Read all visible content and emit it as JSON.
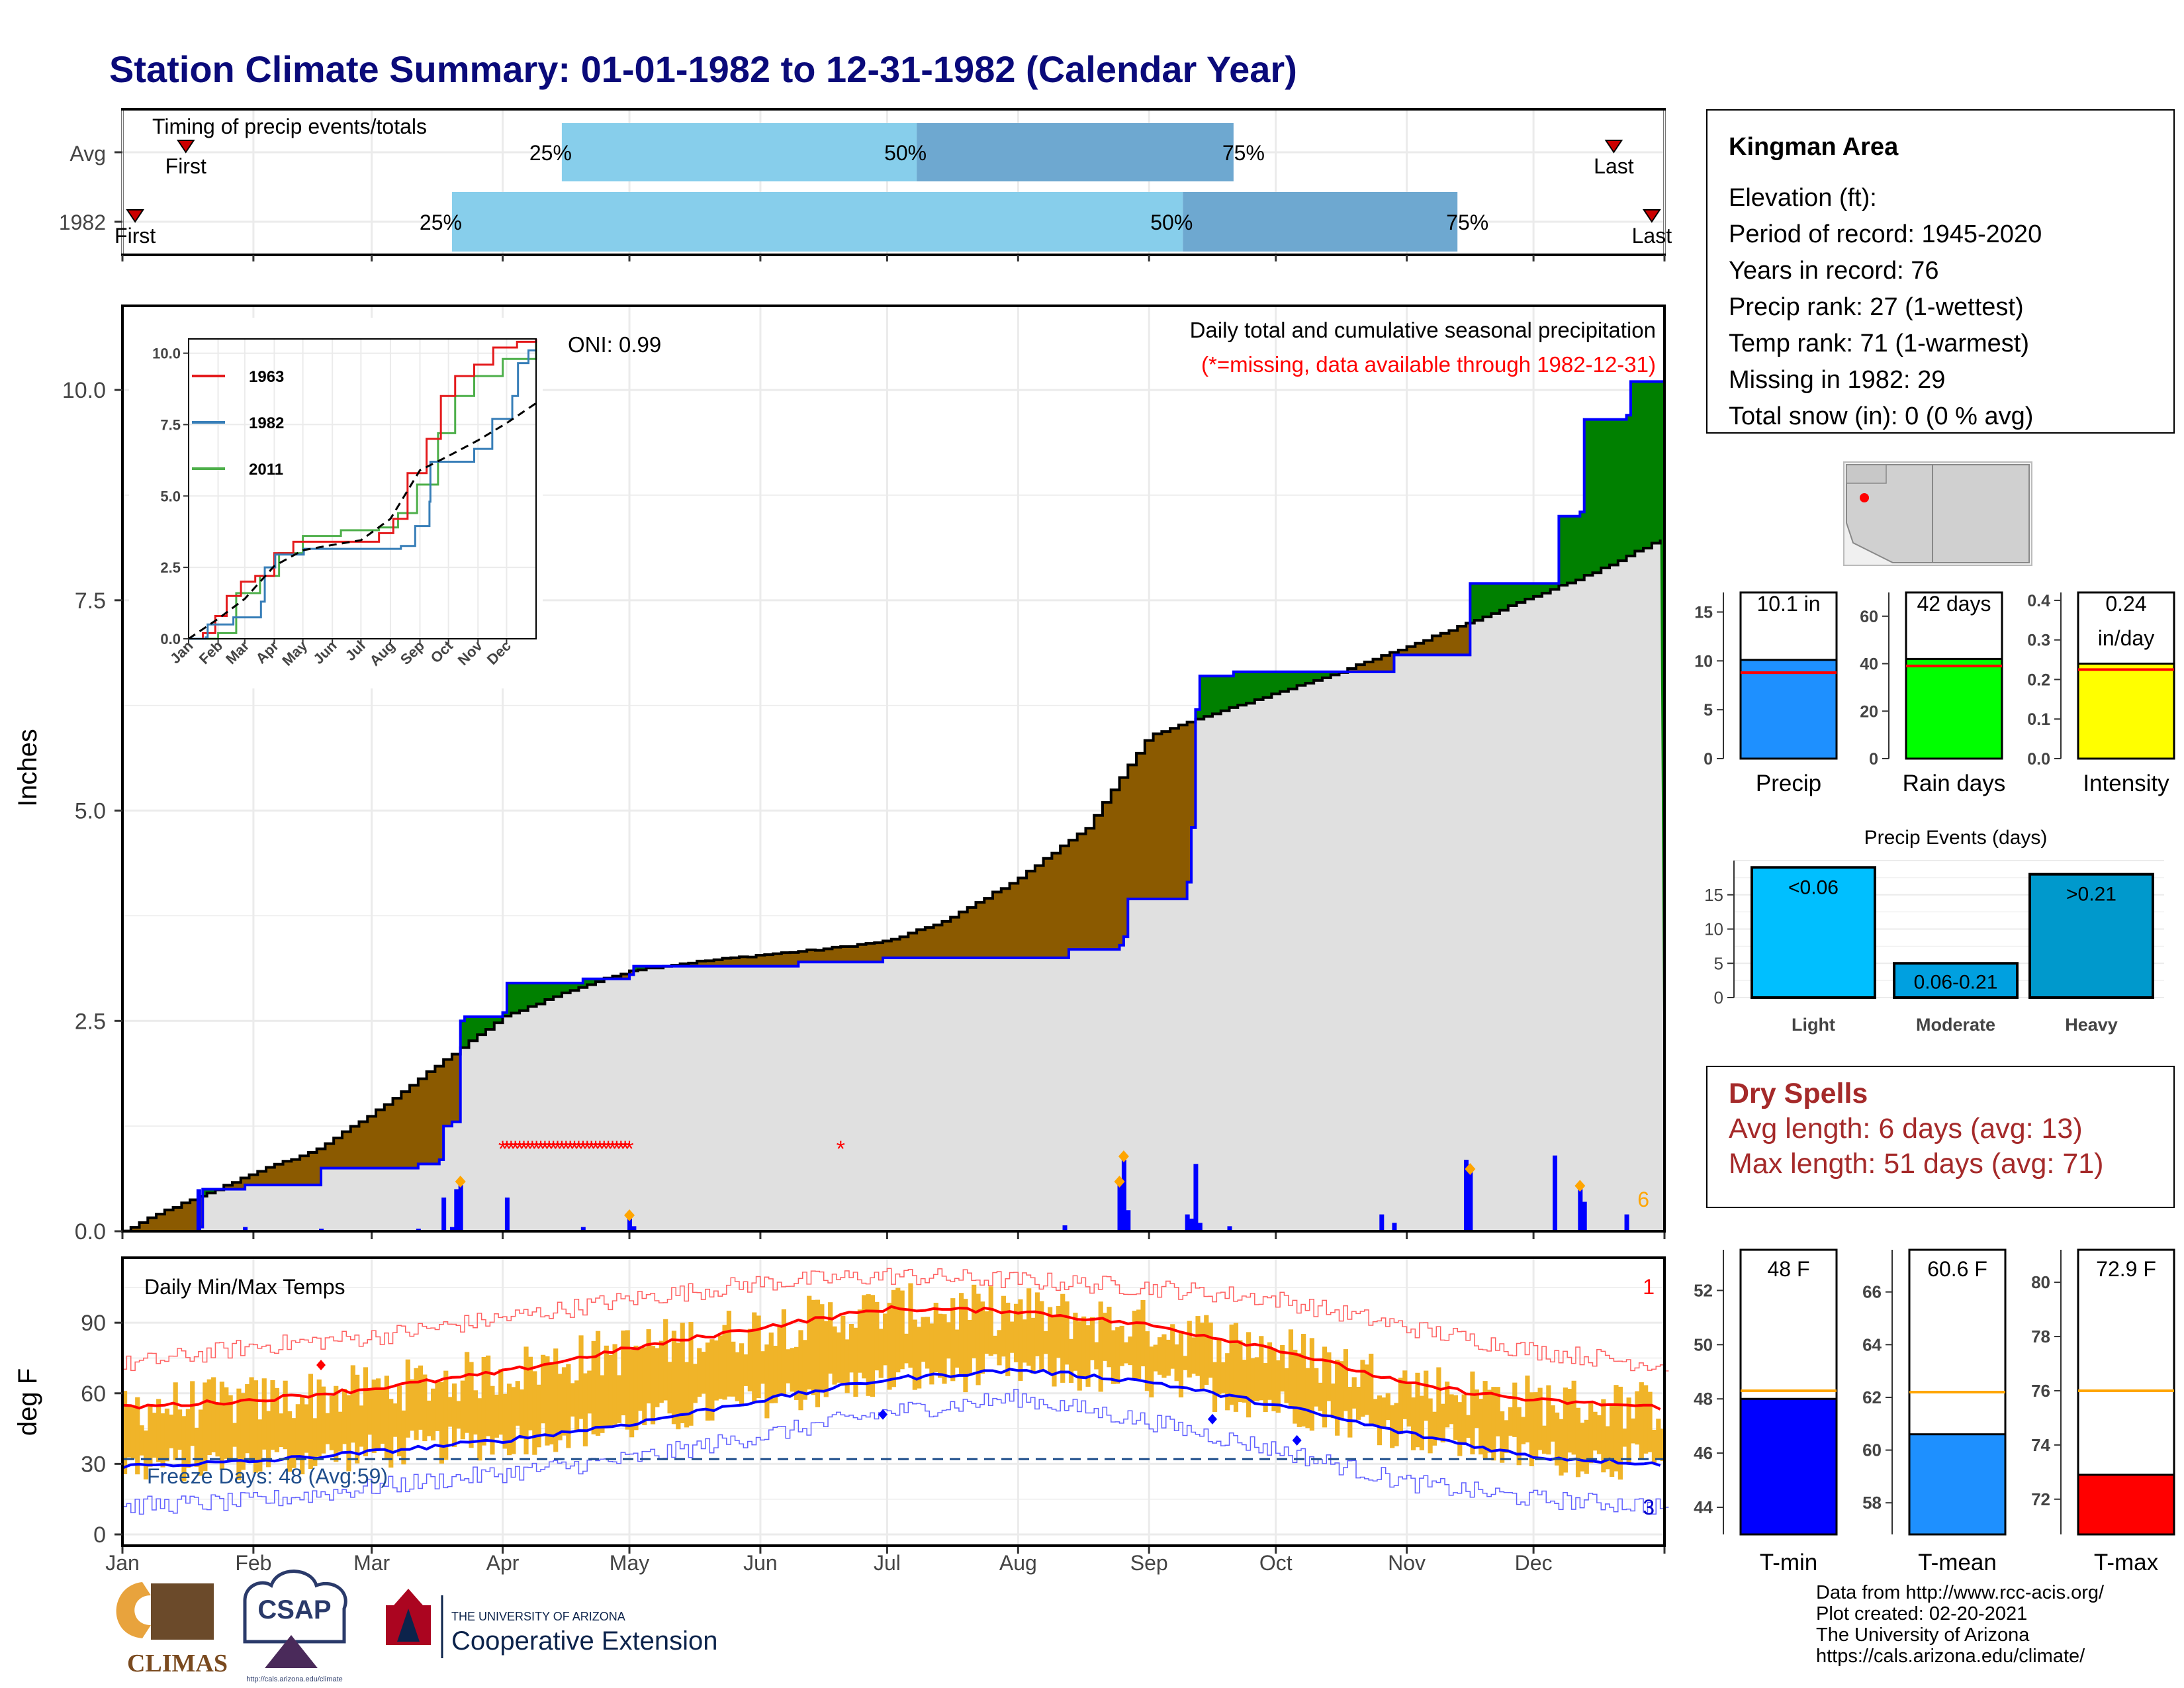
{
  "title": "Station Climate Summary: 01-01-1982 to 12-31-1982 (Calendar Year)",
  "colors": {
    "title": "#0a0a7a",
    "light_blue": "#87ceeb",
    "mid_blue": "#6ea8d0",
    "above": "#008000",
    "below": "#8b5a00",
    "cum_fill": "#e0e0e0",
    "bar_blue": "#0000ff",
    "orange": "#ffa500",
    "red": "#ff0000",
    "temp_bar": "#f0b429"
  },
  "months": [
    "Jan",
    "Feb",
    "Mar",
    "Apr",
    "May",
    "Jun",
    "Jul",
    "Aug",
    "Sep",
    "Oct",
    "Nov",
    "Dec"
  ],
  "timing": {
    "label": "Timing of precip events/totals",
    "rows": [
      {
        "name": "Avg",
        "first_day": 15,
        "p25": 104,
        "p50": 188,
        "p75": 263,
        "last_day": 353,
        "first_label": "First",
        "last_label": "Last",
        "pct25": "25%",
        "pct50": "50%",
        "pct75": "75%"
      },
      {
        "name": "1982",
        "first_day": 3,
        "p25": 78,
        "p50": 251,
        "p75": 316,
        "last_day": 362,
        "first_label": "First",
        "last_label": "Last",
        "pct25": "25%",
        "pct50": "50%",
        "pct75": "75%"
      }
    ]
  },
  "precip_panel": {
    "ylabel": "Inches",
    "yticks": [
      "0.0",
      "2.5",
      "5.0",
      "7.5",
      "10.0"
    ],
    "oni": "ONI: 0.99",
    "legend_title": "Daily total and cumulative seasonal precipitation",
    "missing_note": "(*=missing, data available through 1982-12-31)",
    "corner_count": "6"
  },
  "chart_data": {
    "type": "area",
    "x_unit": "day of year",
    "cumulative_avg": [
      [
        0,
        0
      ],
      [
        10,
        0.25
      ],
      [
        20,
        0.45
      ],
      [
        31,
        0.7
      ],
      [
        45,
        0.95
      ],
      [
        59,
        1.4
      ],
      [
        75,
        2.0
      ],
      [
        90,
        2.55
      ],
      [
        105,
        2.85
      ],
      [
        120,
        3.1
      ],
      [
        135,
        3.2
      ],
      [
        150,
        3.28
      ],
      [
        165,
        3.35
      ],
      [
        181,
        3.45
      ],
      [
        195,
        3.7
      ],
      [
        212,
        4.2
      ],
      [
        228,
        4.8
      ],
      [
        243,
        5.9
      ],
      [
        258,
        6.15
      ],
      [
        273,
        6.4
      ],
      [
        288,
        6.65
      ],
      [
        304,
        6.95
      ],
      [
        319,
        7.25
      ],
      [
        334,
        7.55
      ],
      [
        349,
        7.85
      ],
      [
        365,
        8.25
      ]
    ],
    "cumulative_1982": [
      [
        0,
        0
      ],
      [
        18,
        0.05
      ],
      [
        19,
        0.5
      ],
      [
        29,
        0.55
      ],
      [
        47,
        0.75
      ],
      [
        70,
        0.8
      ],
      [
        75,
        0.85
      ],
      [
        76,
        1.25
      ],
      [
        78,
        1.3
      ],
      [
        80,
        2.5
      ],
      [
        81,
        2.55
      ],
      [
        90,
        2.6
      ],
      [
        91,
        2.95
      ],
      [
        99,
        2.95
      ],
      [
        108,
        2.95
      ],
      [
        109,
        3.0
      ],
      [
        120,
        3.05
      ],
      [
        121,
        3.15
      ],
      [
        160,
        3.2
      ],
      [
        180,
        3.25
      ],
      [
        223,
        3.25
      ],
      [
        224,
        3.35
      ],
      [
        236,
        3.4
      ],
      [
        237,
        3.5
      ],
      [
        238,
        3.95
      ],
      [
        252,
        4.15
      ],
      [
        253,
        4.8
      ],
      [
        254,
        6.2
      ],
      [
        255,
        6.6
      ],
      [
        263,
        6.65
      ],
      [
        300,
        6.65
      ],
      [
        301,
        6.85
      ],
      [
        318,
        6.85
      ],
      [
        319,
        7.7
      ],
      [
        339,
        7.7
      ],
      [
        340,
        8.5
      ],
      [
        345,
        8.55
      ],
      [
        346,
        9.65
      ],
      [
        356,
        9.7
      ],
      [
        357,
        10.1
      ],
      [
        365,
        10.1
      ]
    ],
    "daily_1982": [
      [
        18,
        0.5
      ],
      [
        29,
        0.05
      ],
      [
        47,
        0.03
      ],
      [
        70,
        0.03
      ],
      [
        76,
        0.4
      ],
      [
        78,
        0.05
      ],
      [
        79,
        0.5
      ],
      [
        80,
        0.55
      ],
      [
        91,
        0.4
      ],
      [
        109,
        0.05
      ],
      [
        120,
        0.15
      ],
      [
        121,
        0.06
      ],
      [
        223,
        0.07
      ],
      [
        236,
        0.55
      ],
      [
        237,
        0.85
      ],
      [
        238,
        0.25
      ],
      [
        252,
        0.2
      ],
      [
        253,
        0.15
      ],
      [
        254,
        0.8
      ],
      [
        255,
        0.1
      ],
      [
        262,
        0.06
      ],
      [
        298,
        0.2
      ],
      [
        301,
        0.1
      ],
      [
        318,
        0.85
      ],
      [
        319,
        0.7
      ],
      [
        339,
        0.9
      ],
      [
        345,
        0.5
      ],
      [
        346,
        0.35
      ],
      [
        356,
        0.2
      ]
    ],
    "missing_days": [
      90,
      91,
      92,
      93,
      94,
      95,
      96,
      97,
      98,
      99,
      100,
      101,
      102,
      103,
      104,
      105,
      106,
      107,
      108,
      109,
      110,
      111,
      112,
      113,
      114,
      115,
      116,
      117,
      118,
      119,
      120,
      170
    ],
    "ylim": [
      0,
      11
    ],
    "ylabel": "Inches",
    "xlabel": ""
  },
  "inset": {
    "yticks": [
      "0.0",
      "2.5",
      "5.0",
      "7.5",
      "10.0"
    ],
    "months": [
      "Jan",
      "Feb",
      "Mar",
      "Apr",
      "May",
      "Jun",
      "Jul",
      "Aug",
      "Sep",
      "Oct",
      "Nov",
      "Dec"
    ],
    "legend": [
      {
        "name": "1963",
        "color": "#e41a1c"
      },
      {
        "name": "1982",
        "color": "#377eb8"
      },
      {
        "name": "2011",
        "color": "#4daf4a"
      }
    ],
    "ylim": [
      0,
      10.5
    ],
    "series_1963": [
      [
        0,
        0
      ],
      [
        15,
        0.2
      ],
      [
        28,
        0.8
      ],
      [
        40,
        1.5
      ],
      [
        55,
        2.0
      ],
      [
        70,
        2.2
      ],
      [
        90,
        3.0
      ],
      [
        110,
        3.4
      ],
      [
        130,
        3.4
      ],
      [
        170,
        3.4
      ],
      [
        200,
        3.7
      ],
      [
        215,
        4.2
      ],
      [
        230,
        5.8
      ],
      [
        250,
        7.0
      ],
      [
        265,
        8.5
      ],
      [
        280,
        9.2
      ],
      [
        300,
        9.6
      ],
      [
        320,
        10.2
      ],
      [
        345,
        10.4
      ],
      [
        365,
        10.5
      ]
    ],
    "series_1982": [
      [
        0,
        0
      ],
      [
        18,
        0.05
      ],
      [
        20,
        0.5
      ],
      [
        47,
        0.75
      ],
      [
        76,
        1.3
      ],
      [
        80,
        2.5
      ],
      [
        91,
        2.95
      ],
      [
        121,
        3.15
      ],
      [
        223,
        3.25
      ],
      [
        238,
        3.95
      ],
      [
        253,
        4.8
      ],
      [
        254,
        6.2
      ],
      [
        300,
        6.65
      ],
      [
        319,
        7.7
      ],
      [
        340,
        8.5
      ],
      [
        346,
        9.65
      ],
      [
        357,
        10.1
      ],
      [
        365,
        10.1
      ]
    ],
    "series_2011": [
      [
        0,
        0
      ],
      [
        30,
        0
      ],
      [
        31,
        0.2
      ],
      [
        50,
        1.6
      ],
      [
        75,
        2.2
      ],
      [
        95,
        3.0
      ],
      [
        120,
        3.6
      ],
      [
        160,
        3.8
      ],
      [
        200,
        3.9
      ],
      [
        220,
        4.4
      ],
      [
        240,
        5.4
      ],
      [
        262,
        7.2
      ],
      [
        280,
        8.5
      ],
      [
        300,
        9.2
      ],
      [
        330,
        9.8
      ],
      [
        365,
        10.4
      ]
    ],
    "series_avg": [
      [
        0,
        0
      ],
      [
        31,
        0.7
      ],
      [
        59,
        1.4
      ],
      [
        90,
        2.55
      ],
      [
        120,
        3.1
      ],
      [
        150,
        3.28
      ],
      [
        181,
        3.45
      ],
      [
        212,
        4.2
      ],
      [
        243,
        5.9
      ],
      [
        273,
        6.4
      ],
      [
        304,
        6.95
      ],
      [
        334,
        7.55
      ],
      [
        365,
        8.25
      ]
    ]
  },
  "temp_panel": {
    "ylabel": "deg F",
    "title": "Daily Min/Max Temps",
    "yticks": [
      "0",
      "30",
      "60",
      "90"
    ],
    "freeze_label": "Freeze Days: 48 (Avg:59)",
    "count_top": "1",
    "count_bottom": "3",
    "freeze_line_value": 32,
    "tmax_avg_day": [
      [
        0,
        54
      ],
      [
        31,
        57
      ],
      [
        59,
        62
      ],
      [
        90,
        69
      ],
      [
        120,
        79
      ],
      [
        151,
        88
      ],
      [
        181,
        96
      ],
      [
        212,
        95
      ],
      [
        243,
        89
      ],
      [
        273,
        79
      ],
      [
        304,
        64
      ],
      [
        334,
        57
      ],
      [
        365,
        54
      ]
    ],
    "tmin_avg_day": [
      [
        0,
        29
      ],
      [
        31,
        31
      ],
      [
        59,
        35
      ],
      [
        90,
        40
      ],
      [
        120,
        47
      ],
      [
        151,
        57
      ],
      [
        181,
        66
      ],
      [
        212,
        70
      ],
      [
        243,
        65
      ],
      [
        273,
        55
      ],
      [
        304,
        43
      ],
      [
        334,
        33
      ],
      [
        365,
        30
      ]
    ],
    "record_high": [
      [
        0,
        72
      ],
      [
        31,
        80
      ],
      [
        59,
        84
      ],
      [
        90,
        92
      ],
      [
        120,
        100
      ],
      [
        151,
        107
      ],
      [
        181,
        110
      ],
      [
        212,
        108
      ],
      [
        243,
        105
      ],
      [
        273,
        100
      ],
      [
        304,
        88
      ],
      [
        334,
        78
      ],
      [
        365,
        72
      ]
    ],
    "record_low": [
      [
        0,
        12
      ],
      [
        31,
        14
      ],
      [
        59,
        20
      ],
      [
        90,
        26
      ],
      [
        120,
        32
      ],
      [
        151,
        42
      ],
      [
        181,
        52
      ],
      [
        212,
        58
      ],
      [
        243,
        48
      ],
      [
        273,
        36
      ],
      [
        304,
        22
      ],
      [
        334,
        15
      ],
      [
        365,
        12
      ]
    ],
    "markers_red": [
      [
        47,
        72
      ]
    ],
    "markers_blue": [
      [
        180,
        51
      ],
      [
        258,
        49
      ],
      [
        278,
        40
      ]
    ]
  },
  "station": {
    "name": "Kingman Area",
    "elevation": "Elevation (ft):",
    "period": "Period of record: 1945-2020",
    "years": "Years in record: 76",
    "precip_rank": "Precip rank: 27 (1-wettest)",
    "temp_rank": "Temp rank: 71 (1-warmest)",
    "missing": "Missing in 1982: 29",
    "snow": "Total snow (in): 0 (0 % avg)"
  },
  "summary_bars": [
    {
      "label": "Precip",
      "value_label": "10.1 in",
      "value": 10.1,
      "avg": 8.8,
      "ymax": 17,
      "yticks": [
        "0",
        "5",
        "10",
        "15"
      ],
      "tickvals": [
        0,
        5,
        10,
        15
      ],
      "color": "#1e90ff"
    },
    {
      "label": "Rain days",
      "value_label": "42 days",
      "value": 42,
      "avg": 39,
      "ymax": 70,
      "yticks": [
        "0",
        "20",
        "40",
        "60"
      ],
      "tickvals": [
        0,
        20,
        40,
        60
      ],
      "color": "#00ff00"
    },
    {
      "label": "Intensity",
      "value_label": "0.24\nin/day",
      "value": 0.24,
      "avg": 0.225,
      "ymax": 0.42,
      "yticks": [
        "0.0",
        "0.1",
        "0.2",
        "0.3",
        "0.4"
      ],
      "tickvals": [
        0,
        0.1,
        0.2,
        0.3,
        0.4
      ],
      "color": "#ffff00"
    }
  ],
  "precip_events": {
    "title": "Precip Events (days)",
    "categories": [
      "Light",
      "Moderate",
      "Heavy"
    ],
    "values": [
      19,
      5,
      18
    ],
    "bar_labels": [
      "<0.06",
      "0.06-0.21",
      ">0.21"
    ],
    "colors": [
      "#00bfff",
      "#00a0e0",
      "#0099cc"
    ],
    "yticks": [
      "0",
      "5",
      "10",
      "15"
    ]
  },
  "dry_spells": {
    "title": "Dry Spells",
    "avg_line": "Avg length: 6 days (avg: 13)",
    "max_line": "Max length: 51 days (avg: 71)"
  },
  "temp_bars": [
    {
      "label": "T-min",
      "value_label": "48 F",
      "value": 48,
      "avg": 48.3,
      "ymin": 43,
      "ymax": 53.5,
      "yticks": [
        "44",
        "46",
        "48",
        "50",
        "52"
      ],
      "tickvals": [
        44,
        46,
        48,
        50,
        52
      ],
      "color": "#0000ff"
    },
    {
      "label": "T-mean",
      "value_label": "60.6 F",
      "value": 60.6,
      "avg": 62.2,
      "ymin": 56.8,
      "ymax": 67.6,
      "yticks": [
        "58",
        "60",
        "62",
        "64",
        "66"
      ],
      "tickvals": [
        58,
        60,
        62,
        64,
        66
      ],
      "color": "#1e90ff"
    },
    {
      "label": "T-max",
      "value_label": "72.9 F",
      "value": 72.9,
      "avg": 76,
      "ymin": 70.7,
      "ymax": 81.2,
      "yticks": [
        "72",
        "74",
        "76",
        "78",
        "80"
      ],
      "tickvals": [
        72,
        74,
        76,
        78,
        80
      ],
      "color": "#ff0000"
    }
  ],
  "credits": {
    "line1": "Data from http://www.rcc-acis.org/",
    "line2": "Plot created: 02-20-2021",
    "line3": "The University of Arizona",
    "line4": "https://cals.arizona.edu/climate/"
  },
  "logos": {
    "climas": "CLIMAS",
    "csap": "CSAP",
    "csap_url": "http://cals.arizona.edu/climate",
    "ua_small": "THE UNIVERSITY OF ARIZONA",
    "ua_name": "Cooperative Extension"
  }
}
